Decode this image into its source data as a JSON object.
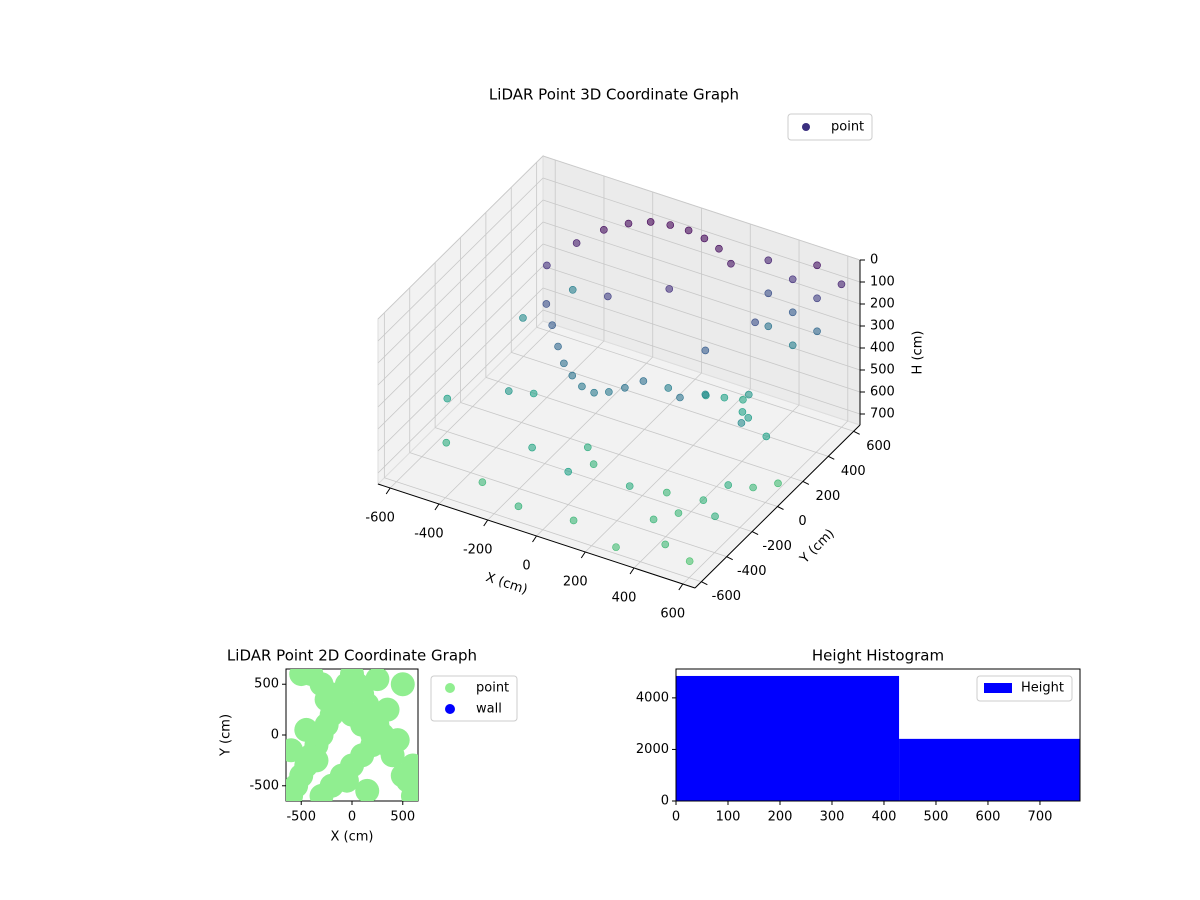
{
  "chart_data": [
    {
      "type": "scatter3d",
      "title": "LiDAR Point 3D Coordinate Graph",
      "xlabel": "X (cm)",
      "ylabel": "Y (cm)",
      "zlabel": "H (cm)",
      "legend": "upper right",
      "series": [
        {
          "name": "point",
          "color": "#3b2f7f",
          "cmap": [
            "#440154",
            "#46327e",
            "#365c8d",
            "#277f8e",
            "#1fa187",
            "#4ac16d"
          ],
          "x": [
            -400,
            -330,
            -260,
            -190,
            -120,
            -50,
            20,
            90,
            160,
            230,
            -350,
            -300,
            -250,
            -200,
            -150,
            -100,
            -50,
            0,
            50,
            100,
            300,
            300,
            300,
            400,
            400,
            400,
            500,
            500,
            500,
            600,
            400,
            450,
            500,
            550,
            600,
            350,
            450,
            550,
            300,
            500,
            -600,
            -500,
            -400,
            -300,
            -200,
            -100,
            0,
            100,
            200,
            300,
            -550,
            -450,
            -350,
            250,
            350,
            450,
            550,
            -150,
            50,
            250,
            200,
            250,
            300,
            350,
            400,
            150,
            250,
            350,
            0,
            -50
          ],
          "y": [
            200,
            300,
            380,
            440,
            480,
            500,
            510,
            500,
            480,
            440,
            100,
            50,
            0,
            -50,
            -80,
            -100,
            -100,
            -80,
            -50,
            0,
            600,
            600,
            600,
            600,
            600,
            600,
            600,
            600,
            600,
            600,
            -300,
            -200,
            -100,
            0,
            100,
            -400,
            -500,
            -300,
            -200,
            200,
            -200,
            -400,
            -100,
            -500,
            -300,
            -600,
            -400,
            -550,
            -300,
            -600,
            300,
            500,
            0,
            200,
            400,
            100,
            -500,
            200,
            300,
            0,
            300,
            350,
            400,
            300,
            250,
            100,
            200,
            350,
            -200,
            -150
          ],
          "z": [
            150,
            80,
            40,
            20,
            10,
            10,
            15,
            20,
            30,
            50,
            250,
            300,
            350,
            380,
            400,
            420,
            430,
            420,
            400,
            380,
            100,
            250,
            400,
            150,
            300,
            450,
            50,
            200,
            350,
            100,
            700,
            680,
            650,
            700,
            720,
            690,
            710,
            660,
            700,
            600,
            600,
            650,
            550,
            700,
            620,
            680,
            600,
            700,
            650,
            720,
            500,
            450,
            600,
            300,
            250,
            500,
            750,
            200,
            150,
            400,
            580,
            600,
            620,
            600,
            580,
            450,
            500,
            550,
            680,
            650
          ]
        }
      ],
      "xlim": [
        -650,
        650
      ],
      "ylim": [
        -650,
        650
      ],
      "zlim": [
        750,
        0
      ],
      "xticks": [
        -600,
        -400,
        -200,
        0,
        200,
        400,
        600
      ],
      "yticks": [
        -600,
        -400,
        -200,
        0,
        200,
        400,
        600
      ],
      "zticks": [
        0,
        100,
        200,
        300,
        400,
        500,
        600,
        700
      ],
      "grid": true
    },
    {
      "type": "scatter",
      "title": "LiDAR Point 2D Coordinate Graph",
      "xlabel": "X (cm)",
      "ylabel": "Y (cm)",
      "legend": "outside right",
      "series": [
        {
          "name": "point",
          "color": "#90ee90",
          "x": [
            -600,
            -550,
            -500,
            -450,
            -400,
            -350,
            -300,
            -250,
            -200,
            -150,
            -100,
            -50,
            0,
            50,
            100,
            150,
            200,
            250,
            300,
            350,
            -300,
            -200,
            -100,
            0,
            100,
            200,
            300,
            400,
            500,
            600,
            -400,
            -300,
            -200,
            -100,
            0,
            100,
            200,
            -500,
            500,
            600,
            -600,
            -450,
            -250,
            -50,
            150,
            350,
            550,
            -350,
            450,
            250
          ],
          "y": [
            -600,
            -500,
            -400,
            -300,
            -200,
            -100,
            0,
            100,
            200,
            300,
            400,
            500,
            600,
            500,
            400,
            300,
            200,
            100,
            0,
            -100,
            -600,
            -500,
            -400,
            -300,
            -200,
            -100,
            0,
            -200,
            -400,
            -600,
            600,
            500,
            400,
            300,
            200,
            100,
            0,
            600,
            500,
            -300,
            -150,
            50,
            350,
            -450,
            -550,
            250,
            -450,
            -250,
            -50,
            550
          ]
        },
        {
          "name": "wall",
          "color": "#0000ff",
          "x": [],
          "y": []
        }
      ],
      "xlim": [
        -650,
        650
      ],
      "ylim": [
        -650,
        650
      ],
      "xticks": [
        -500,
        0,
        500
      ],
      "yticks": [
        -500,
        0,
        500
      ]
    },
    {
      "type": "histogram",
      "title": "Height Histogram",
      "legend": "upper right",
      "series": [
        {
          "name": "Height",
          "color": "#0000ff",
          "bins": [
            0,
            429,
            777
          ],
          "values": [
            4850,
            2410
          ]
        }
      ],
      "xlim": [
        0,
        777
      ],
      "ylim": [
        0,
        5120
      ],
      "xticks": [
        0,
        100,
        200,
        300,
        400,
        500,
        600,
        700
      ],
      "yticks": [
        0,
        2000,
        4000
      ]
    }
  ]
}
